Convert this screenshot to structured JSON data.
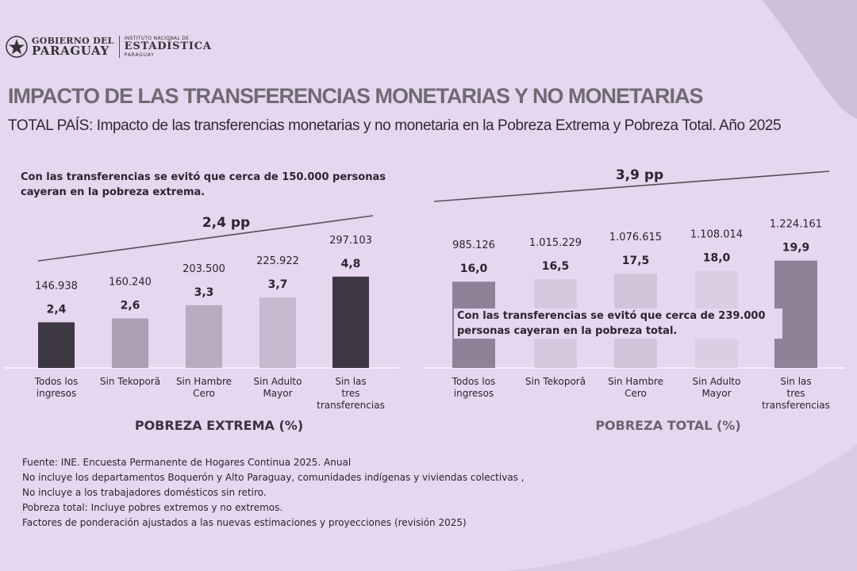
{
  "header": {
    "gov_line1": "GOBIERNO DEL",
    "gov_line2": "PARAGUAY",
    "ine_line1": "INSTITUTO NACIONAL DE",
    "ine_line2": "ESTADÍSTICA",
    "ine_line3": "PARAGUAY",
    "title": "IMPACTO DE LAS TRANSFERENCIAS MONETARIAS Y NO MONETARIAS",
    "subtitle": "TOTAL PAÍS: Impacto de las transferencias monetarias y no monetaria en la Pobreza Extrema y Pobreza Total. Año 2025"
  },
  "notes": {
    "left": "Con las transferencias se evitó que cerca de 150.000 personas cayeran en la pobreza extrema.",
    "right": "Con las transferencias se evitó que cerca de 239.000 personas cayeran en la pobreza total."
  },
  "chart_data": [
    {
      "type": "bar",
      "title": "POBREZA EXTREMA (%)",
      "categories": [
        "Todos los ingresos",
        "Sin Tekoporã",
        "Sin Hambre Cero",
        "Sin Adulto Mayor",
        "Sin las tres transferencias"
      ],
      "values": [
        2.4,
        2.6,
        3.3,
        3.7,
        4.8
      ],
      "value_labels": [
        "2,4",
        "2,6",
        "3,3",
        "3,7",
        "4,8"
      ],
      "persons": [
        "146.938",
        "160.240",
        "203.500",
        "225.922",
        "297.103"
      ],
      "difference_label": "2,4 pp",
      "ylim": [
        0,
        6
      ],
      "colors": [
        "#3e3845",
        "#ab9fb5",
        "#b8acc1",
        "#c7b9d0",
        "#3e3845"
      ]
    },
    {
      "type": "bar",
      "title": "POBREZA TOTAL (%)",
      "categories": [
        "Todos los ingresos",
        "Sin Tekoporã",
        "Sin Hambre Cero",
        "Sin Adulto Mayor",
        "Sin las tres transferencias"
      ],
      "values": [
        16.0,
        16.5,
        17.5,
        18.0,
        19.9
      ],
      "value_labels": [
        "16,0",
        "16,5",
        "17,5",
        "18,0",
        "19,9"
      ],
      "persons": [
        "985.126",
        "1.015.229",
        "1.076.615",
        "1.108.014",
        "1.224.161"
      ],
      "difference_label": "3,9 pp",
      "ylim": [
        0,
        24
      ],
      "colors": [
        "#8e8198",
        "#d7c8df",
        "#d2c3db",
        "#dccde4",
        "#8e8198"
      ]
    }
  ],
  "footnotes": [
    "Fuente: INE. Encuesta Permanente de Hogares Continua 2025. Anual",
    "No incluye los departamentos Boquerón y Alto Paraguay, comunidades indígenas y viviendas colectivas ,",
    "No incluye a los trabajadores domésticos sin retiro.",
    "Pobreza total: Incluye pobres extremos y no extremos.",
    "Factores de ponderación ajustados a las nuevas estimaciones y proyecciones (revisión 2025)"
  ]
}
